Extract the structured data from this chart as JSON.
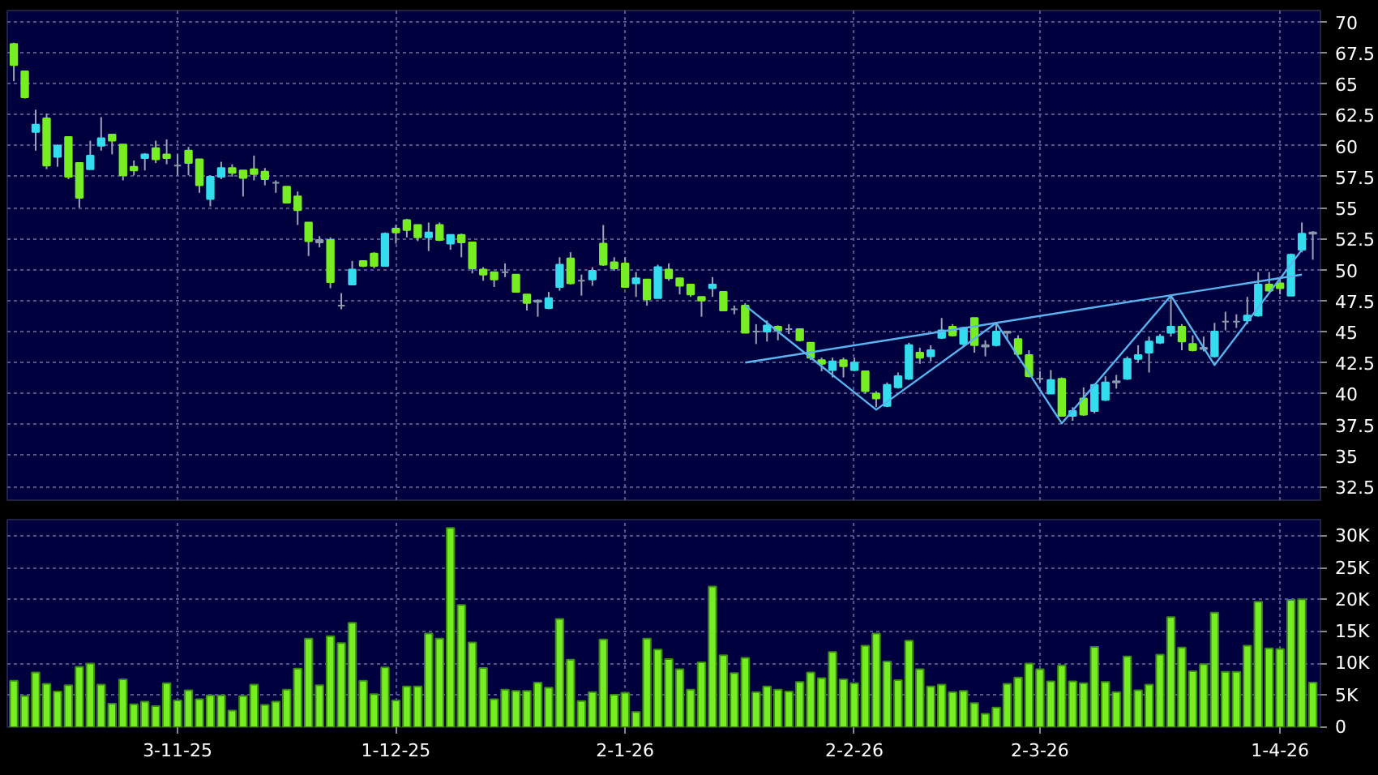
{
  "chart_data": [
    {
      "type": "candlestick",
      "categories": [
        null,
        null,
        null,
        null,
        null,
        null,
        null,
        null,
        null,
        null,
        null,
        null,
        null,
        null,
        null,
        null,
        null,
        null,
        null,
        null,
        null,
        null,
        null,
        null,
        null,
        null,
        null,
        null,
        null,
        null,
        null,
        null,
        null,
        null,
        null,
        null,
        null,
        null,
        null,
        null,
        null,
        null,
        null,
        null,
        null,
        null,
        null,
        null,
        null,
        null,
        null,
        null,
        null,
        null,
        null,
        null,
        null,
        null,
        null,
        null,
        null,
        null,
        null,
        null,
        null,
        null,
        null,
        null,
        null,
        null,
        null,
        null,
        null,
        null,
        null,
        null,
        null,
        null,
        null,
        null,
        null,
        null,
        null,
        null,
        null,
        null,
        null,
        null,
        null,
        null,
        null,
        null,
        null,
        null,
        null,
        null,
        null,
        null,
        null,
        null,
        null,
        null,
        null,
        null,
        null,
        null,
        null,
        null,
        null,
        null,
        null,
        null,
        null,
        null,
        null,
        null,
        null,
        null,
        null,
        null
      ],
      "ohlc": [
        [
          68.2,
          68.3,
          65.2,
          66.5
        ],
        [
          66.0,
          66.0,
          63.8,
          63.9
        ],
        [
          61.1,
          62.9,
          59.6,
          61.7
        ],
        [
          62.2,
          62.6,
          58.1,
          58.4
        ],
        [
          59.1,
          60.1,
          58.3,
          60.0
        ],
        [
          60.7,
          60.7,
          57.3,
          57.5
        ],
        [
          58.6,
          58.6,
          55.0,
          55.8
        ],
        [
          58.1,
          60.4,
          58.1,
          59.2
        ],
        [
          60.0,
          62.3,
          59.6,
          60.6
        ],
        [
          60.9,
          60.9,
          59.3,
          60.4
        ],
        [
          60.1,
          60.1,
          57.2,
          57.6
        ],
        [
          58.3,
          58.8,
          57.6,
          58.0
        ],
        [
          59.0,
          59.4,
          58.0,
          59.3
        ],
        [
          59.8,
          60.4,
          58.6,
          58.9
        ],
        [
          59.3,
          60.5,
          58.5,
          59.0
        ],
        [
          58.4,
          59.3,
          57.6,
          58.4
        ],
        [
          59.6,
          59.9,
          57.6,
          58.6
        ],
        [
          58.9,
          58.9,
          56.2,
          56.8
        ],
        [
          55.7,
          57.6,
          55.1,
          57.5
        ],
        [
          57.5,
          58.7,
          57.3,
          58.2
        ],
        [
          58.2,
          58.5,
          57.5,
          57.8
        ],
        [
          58.0,
          58.0,
          55.9,
          57.4
        ],
        [
          58.1,
          59.2,
          57.2,
          57.7
        ],
        [
          57.9,
          58.2,
          56.8,
          57.3
        ],
        [
          57.0,
          57.2,
          56.2,
          57.0
        ],
        [
          56.7,
          56.7,
          55.4,
          55.4
        ],
        [
          55.9,
          56.3,
          53.6,
          54.8
        ],
        [
          53.8,
          53.8,
          51.1,
          52.3
        ],
        [
          52.4,
          52.7,
          51.8,
          52.2
        ],
        [
          52.4,
          52.6,
          48.5,
          49.0
        ],
        [
          47.1,
          48.1,
          46.8,
          47.1
        ],
        [
          48.8,
          50.7,
          48.8,
          50.0
        ],
        [
          50.7,
          50.7,
          50.2,
          50.3
        ],
        [
          51.3,
          51.4,
          50.1,
          50.3
        ],
        [
          50.3,
          53.0,
          50.3,
          52.9
        ],
        [
          53.3,
          53.6,
          52.1,
          53.0
        ],
        [
          54.0,
          54.1,
          52.6,
          53.2
        ],
        [
          53.6,
          53.6,
          52.3,
          52.6
        ],
        [
          52.6,
          53.8,
          51.5,
          53.0
        ],
        [
          53.6,
          53.8,
          52.3,
          52.4
        ],
        [
          52.1,
          52.8,
          51.6,
          52.8
        ],
        [
          52.8,
          52.9,
          51.0,
          52.2
        ],
        [
          52.2,
          52.2,
          49.7,
          50.1
        ],
        [
          50.0,
          50.2,
          49.1,
          49.6
        ],
        [
          49.8,
          49.8,
          48.6,
          49.2
        ],
        [
          49.8,
          50.5,
          49.4,
          49.8
        ],
        [
          49.6,
          49.6,
          48.2,
          48.2
        ],
        [
          48.0,
          48.0,
          46.7,
          47.3
        ],
        [
          47.5,
          47.6,
          46.2,
          47.4
        ],
        [
          46.9,
          48.2,
          46.8,
          47.7
        ],
        [
          48.6,
          51.0,
          48.3,
          50.4
        ],
        [
          50.9,
          51.4,
          48.8,
          48.9
        ],
        [
          49.1,
          49.6,
          47.9,
          49.1
        ],
        [
          49.2,
          50.2,
          48.7,
          49.9
        ],
        [
          52.1,
          53.6,
          50.3,
          50.4
        ],
        [
          50.6,
          51.0,
          49.9,
          50.1
        ],
        [
          50.5,
          51.0,
          48.6,
          48.6
        ],
        [
          48.9,
          49.8,
          47.8,
          49.3
        ],
        [
          49.2,
          49.2,
          47.1,
          47.6
        ],
        [
          47.7,
          50.4,
          47.7,
          50.2
        ],
        [
          50.0,
          50.5,
          49.1,
          49.3
        ],
        [
          49.3,
          49.3,
          48.0,
          48.7
        ],
        [
          48.8,
          48.8,
          47.8,
          48.0
        ],
        [
          47.8,
          47.8,
          46.2,
          47.5
        ],
        [
          48.5,
          49.4,
          47.8,
          48.8
        ],
        [
          48.2,
          48.2,
          46.7,
          46.7
        ],
        [
          46.8,
          47.1,
          46.4,
          46.8
        ],
        [
          47.1,
          47.3,
          44.9,
          44.9
        ],
        [
          45.0,
          45.6,
          44.0,
          45.0
        ],
        [
          45.0,
          45.9,
          44.2,
          45.5
        ],
        [
          45.4,
          45.5,
          44.3,
          45.1
        ],
        [
          45.2,
          45.6,
          44.8,
          45.2
        ],
        [
          45.2,
          45.2,
          44.2,
          44.3
        ],
        [
          44.1,
          44.1,
          42.7,
          42.9
        ],
        [
          42.7,
          42.9,
          41.8,
          42.4
        ],
        [
          41.9,
          42.9,
          41.3,
          42.6
        ],
        [
          42.7,
          42.9,
          41.3,
          42.2
        ],
        [
          41.9,
          42.9,
          41.8,
          42.5
        ],
        [
          41.8,
          41.8,
          40.0,
          40.2
        ],
        [
          40.0,
          40.2,
          38.9,
          39.6
        ],
        [
          39.0,
          40.9,
          38.9,
          40.7
        ],
        [
          40.5,
          41.7,
          40.4,
          41.4
        ],
        [
          41.2,
          44.1,
          41.1,
          43.9
        ],
        [
          43.3,
          43.7,
          42.4,
          42.9
        ],
        [
          43.0,
          43.9,
          42.6,
          43.5
        ],
        [
          44.5,
          46.1,
          44.4,
          45.1
        ],
        [
          45.4,
          45.6,
          44.6,
          44.7
        ],
        [
          44.0,
          45.4,
          43.8,
          45.3
        ],
        [
          46.1,
          46.1,
          43.3,
          43.9
        ],
        [
          43.9,
          44.3,
          43.0,
          43.8
        ],
        [
          43.9,
          45.6,
          43.8,
          45.0
        ],
        [
          45.0,
          45.0,
          44.3,
          44.9
        ],
        [
          44.4,
          44.7,
          43.1,
          43.2
        ],
        [
          43.1,
          43.5,
          41.3,
          41.4
        ],
        [
          41.2,
          41.8,
          40.9,
          41.2
        ],
        [
          40.0,
          41.9,
          40.0,
          41.1
        ],
        [
          41.2,
          41.3,
          38.2,
          38.2
        ],
        [
          38.2,
          38.9,
          37.8,
          38.6
        ],
        [
          39.6,
          40.5,
          38.2,
          38.3
        ],
        [
          38.6,
          40.8,
          38.4,
          40.7
        ],
        [
          39.5,
          41.4,
          39.4,
          40.9
        ],
        [
          40.9,
          41.5,
          40.4,
          41.0
        ],
        [
          41.2,
          43.0,
          41.1,
          42.8
        ],
        [
          42.8,
          43.9,
          42.5,
          43.1
        ],
        [
          43.3,
          44.6,
          41.7,
          44.2
        ],
        [
          44.1,
          44.8,
          44.0,
          44.6
        ],
        [
          44.9,
          47.8,
          44.6,
          45.4
        ],
        [
          45.4,
          45.6,
          43.5,
          44.2
        ],
        [
          44.0,
          44.7,
          43.4,
          43.5
        ],
        [
          43.7,
          44.6,
          43.4,
          43.6
        ],
        [
          43.0,
          45.7,
          42.9,
          45.0
        ],
        [
          45.8,
          46.6,
          45.1,
          45.8
        ],
        [
          45.8,
          46.4,
          45.3,
          45.8
        ],
        [
          45.9,
          47.8,
          45.6,
          46.3
        ],
        [
          46.3,
          49.8,
          46.2,
          48.8
        ],
        [
          48.8,
          49.8,
          48.2,
          48.3
        ],
        [
          48.9,
          49.3,
          48.0,
          48.5
        ],
        [
          47.9,
          51.3,
          47.9,
          51.2
        ],
        [
          51.6,
          53.8,
          51.4,
          52.9
        ],
        [
          52.9,
          53.1,
          50.8,
          53.0
        ]
      ],
      "colors": [
        "#77ee22",
        "#77ee22",
        "#33ddee",
        "#77ee22",
        "#33ddee",
        "#77ee22",
        "#77ee22",
        "#33ddee",
        "#33ddee",
        "#77ee22",
        "#77ee22",
        "#77ee22",
        "#33ddee",
        "#77ee22",
        "#77ee22",
        "#8899aa",
        "#77ee22",
        "#77ee22",
        "#33ddee",
        "#33ddee",
        "#77ee22",
        "#77ee22",
        "#77ee22",
        "#77ee22",
        "#8899aa",
        "#77ee22",
        "#77ee22",
        "#77ee22",
        "#8899aa",
        "#77ee22",
        "#8899aa",
        "#33ddee",
        "#77ee22",
        "#77ee22",
        "#33ddee",
        "#77ee22",
        "#77ee22",
        "#77ee22",
        "#33ddee",
        "#77ee22",
        "#33ddee",
        "#77ee22",
        "#77ee22",
        "#77ee22",
        "#77ee22",
        "#8899aa",
        "#77ee22",
        "#77ee22",
        "#8899aa",
        "#33ddee",
        "#33ddee",
        "#77ee22",
        "#8899aa",
        "#33ddee",
        "#77ee22",
        "#77ee22",
        "#77ee22",
        "#33ddee",
        "#77ee22",
        "#33ddee",
        "#77ee22",
        "#77ee22",
        "#77ee22",
        "#77ee22",
        "#33ddee",
        "#77ee22",
        "#8899aa",
        "#77ee22",
        "#8899aa",
        "#33ddee",
        "#77ee22",
        "#8899aa",
        "#77ee22",
        "#77ee22",
        "#77ee22",
        "#33ddee",
        "#77ee22",
        "#33ddee",
        "#77ee22",
        "#77ee22",
        "#33ddee",
        "#33ddee",
        "#33ddee",
        "#77ee22",
        "#33ddee",
        "#33ddee",
        "#77ee22",
        "#33ddee",
        "#77ee22",
        "#8899aa",
        "#33ddee",
        "#8899aa",
        "#77ee22",
        "#77ee22",
        "#8899aa",
        "#33ddee",
        "#77ee22",
        "#33ddee",
        "#77ee22",
        "#33ddee",
        "#33ddee",
        "#8899aa",
        "#33ddee",
        "#33ddee",
        "#33ddee",
        "#33ddee",
        "#33ddee",
        "#77ee22",
        "#77ee22",
        "#8899aa",
        "#33ddee",
        "#8899aa",
        "#8899aa",
        "#33ddee",
        "#33ddee",
        "#77ee22",
        "#77ee22",
        "#33ddee",
        "#33ddee",
        "#8899aa"
      ],
      "series": [
        {
          "type": "line",
          "color": "#5ab4f0",
          "values": [
            null,
            null,
            null,
            null,
            null,
            null,
            null,
            null,
            null,
            null,
            null,
            null,
            null,
            null,
            null,
            null,
            null,
            null,
            null,
            null,
            null,
            null,
            null,
            null,
            null,
            null,
            null,
            null,
            null,
            null,
            null,
            null,
            null,
            null,
            null,
            null,
            null,
            null,
            null,
            null,
            null,
            null,
            null,
            null,
            null,
            null,
            null,
            null,
            null,
            null,
            null,
            null,
            null,
            null,
            null,
            null,
            null,
            null,
            null,
            null,
            null,
            null,
            null,
            null,
            null,
            null,
            null,
            42.5,
            null,
            null,
            null,
            null,
            null,
            null,
            null,
            null,
            null,
            null,
            null,
            null,
            null,
            null,
            null,
            null,
            null,
            null,
            null,
            null,
            null,
            null,
            null,
            null,
            null,
            null,
            null,
            null,
            null,
            null,
            null,
            null,
            null,
            null,
            null,
            null,
            null,
            null,
            null,
            null,
            null,
            null,
            null,
            null,
            null,
            null,
            null,
            null,
            null,
            null,
            49.6,
            null
          ]
        },
        {
          "type": "line",
          "color": "#5ab4f0",
          "values": [
            null,
            null,
            null,
            null,
            null,
            null,
            null,
            null,
            null,
            null,
            null,
            null,
            null,
            null,
            null,
            null,
            null,
            null,
            null,
            null,
            null,
            null,
            null,
            null,
            null,
            null,
            null,
            null,
            null,
            null,
            null,
            null,
            null,
            null,
            null,
            null,
            null,
            null,
            null,
            null,
            null,
            null,
            null,
            null,
            null,
            null,
            null,
            null,
            null,
            null,
            null,
            null,
            null,
            null,
            null,
            null,
            null,
            null,
            null,
            null,
            null,
            null,
            null,
            null,
            null,
            null,
            null,
            47.1,
            null,
            null,
            null,
            null,
            null,
            null,
            null,
            null,
            null,
            null,
            null,
            38.7,
            null,
            null,
            null,
            null,
            null,
            null,
            null,
            null,
            null,
            null,
            45.7,
            null,
            null,
            null,
            null,
            null,
            37.6,
            null,
            null,
            null,
            null,
            null,
            null,
            null,
            null,
            null,
            47.9,
            null,
            null,
            null,
            42.3,
            null,
            null,
            null,
            null,
            null,
            null,
            null,
            51.6,
            null
          ]
        }
      ],
      "ylim": [
        31.4,
        70.9
      ],
      "yticks": [
        32.5,
        35,
        37.5,
        40,
        42.5,
        45,
        47.5,
        50,
        52.5,
        55,
        57.5,
        60,
        62.5,
        65,
        67.5,
        70
      ],
      "grid": true
    },
    {
      "type": "bar",
      "color": "#77ee22",
      "categories": [
        null,
        null,
        null,
        null,
        null,
        null,
        null,
        null,
        null,
        null,
        null,
        null,
        null,
        null,
        null,
        "3-11-25",
        null,
        null,
        null,
        null,
        null,
        null,
        null,
        null,
        null,
        null,
        null,
        null,
        null,
        null,
        null,
        null,
        null,
        null,
        null,
        "1-12-25",
        null,
        null,
        null,
        null,
        null,
        null,
        null,
        null,
        null,
        null,
        null,
        null,
        null,
        null,
        null,
        null,
        null,
        null,
        null,
        null,
        "2-1-26",
        null,
        null,
        null,
        null,
        null,
        null,
        null,
        null,
        null,
        null,
        null,
        null,
        null,
        null,
        null,
        null,
        null,
        null,
        null,
        null,
        "2-2-26",
        null,
        null,
        null,
        null,
        null,
        null,
        null,
        null,
        null,
        null,
        null,
        null,
        null,
        null,
        null,
        null,
        "2-3-26",
        null,
        null,
        null,
        null,
        null,
        null,
        null,
        null,
        null,
        null,
        null,
        null,
        null,
        null,
        null,
        null,
        null,
        null,
        null,
        null,
        null,
        "1-4-26",
        null,
        null,
        null
      ],
      "values": [
        7300,
        4900,
        8600,
        6800,
        5600,
        6600,
        9500,
        10000,
        6700,
        3700,
        7500,
        3600,
        4000,
        3300,
        6900,
        4200,
        5800,
        4400,
        5000,
        5000,
        2600,
        4900,
        6700,
        3500,
        4000,
        5900,
        9200,
        13900,
        6600,
        14300,
        13200,
        16400,
        7300,
        5200,
        9400,
        4200,
        6400,
        6400,
        14700,
        13900,
        31300,
        19200,
        13300,
        9300,
        4400,
        5900,
        5700,
        5700,
        7000,
        6200,
        17000,
        10600,
        4100,
        5500,
        13800,
        5100,
        5400,
        2400,
        13900,
        12200,
        10700,
        9100,
        5900,
        10200,
        22100,
        11300,
        8500,
        10900,
        5500,
        6400,
        5900,
        5600,
        7100,
        8600,
        7700,
        11800,
        7500,
        6900,
        12800,
        14700,
        10300,
        7400,
        13600,
        9100,
        6400,
        6700,
        5500,
        5700,
        3800,
        2100,
        3100,
        6800,
        7800,
        10000,
        9100,
        7200,
        9700,
        7200,
        6900,
        12600,
        7100,
        5500,
        11100,
        5800,
        6700,
        11400,
        17300,
        12500,
        8800,
        9900,
        18000,
        8700,
        8700,
        12800,
        19700,
        12400,
        12300,
        20000,
        20100,
        7000
      ],
      "ylim": [
        0,
        32600
      ],
      "yticks": [
        0,
        {
          "value": 5000,
          "label": "5K"
        },
        {
          "value": 10000,
          "label": "10K"
        },
        {
          "value": 15000,
          "label": "15K"
        },
        {
          "value": 20000,
          "label": "20K"
        },
        {
          "value": 25000,
          "label": "25K"
        },
        {
          "value": 30000,
          "label": "30K"
        }
      ],
      "grid": true
    }
  ]
}
